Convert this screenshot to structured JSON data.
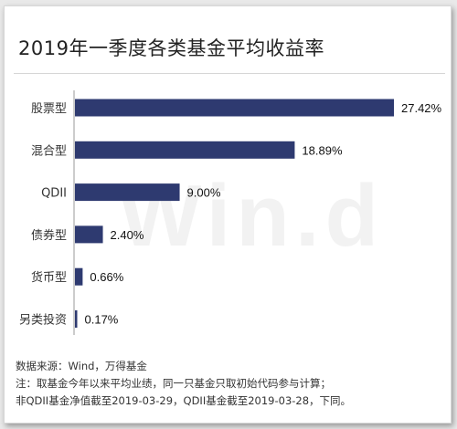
{
  "title": "2019年一季度各类基金平均收益率",
  "watermark": "Win.d",
  "bar_color": "#2e3a70",
  "chart_data": {
    "type": "bar",
    "orientation": "horizontal",
    "categories": [
      "股票型",
      "混合型",
      "QDII",
      "债券型",
      "货币型",
      "另类投资"
    ],
    "values": [
      27.42,
      18.89,
      9.0,
      2.4,
      0.66,
      0.17
    ],
    "labels": [
      "27.42%",
      "18.89%",
      "9.00%",
      "2.40%",
      "0.66%",
      "0.17%"
    ],
    "title": "2019年一季度各类基金平均收益率",
    "xlim": [
      0,
      27.42
    ],
    "grid": false
  },
  "footer": {
    "source": "数据来源：Wind，万得基金",
    "note1": "注：取基金今年以来平均业绩，同一只基金只取初始代码参与计算；",
    "note2": "非QDII基金净值截至2019-03-29，QDII基金截至2019-03-28，下同。"
  }
}
